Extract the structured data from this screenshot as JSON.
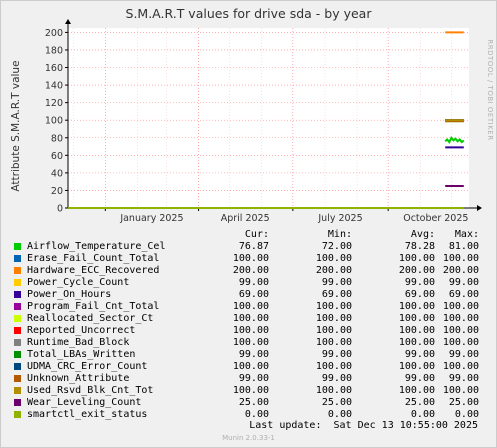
{
  "title": "S.M.A.R.T values for drive sda - by year",
  "watermark": "RRDTOOL / TOBI OETIKER",
  "footer": "Munin 2.0.33-1",
  "legend_header": {
    "cur": "Cur:",
    "min": "Min:",
    "avg": "Avg:",
    "max": "Max:"
  },
  "last_update": "Last update:  Sat Dec 13 10:55:00 2025",
  "colors": {
    "background": "#f0f0f0",
    "plot_bg": "#ffffff",
    "grid": "#ff8080",
    "axis": "#000000"
  },
  "chart_data": {
    "type": "line",
    "title": "S.M.A.R.T values for drive sda - by year",
    "ylabel": "Attribute S.M.A.R.T value",
    "ylim": [
      0,
      205
    ],
    "yticks": [
      0,
      20,
      40,
      60,
      80,
      100,
      120,
      140,
      160,
      180,
      200
    ],
    "xlim": [
      "2024-11-26",
      "2025-12-18"
    ],
    "xticks": [
      {
        "label": "January 2025",
        "date": "2025-01-01"
      },
      {
        "label": "April 2025",
        "date": "2025-04-01"
      },
      {
        "label": "July 2025",
        "date": "2025-07-01"
      },
      {
        "label": "October 2025",
        "date": "2025-10-01"
      }
    ],
    "grid": true,
    "series": [
      {
        "name": "Airflow_Temperature_Cel",
        "color": "#00cc00",
        "cur": "76.87",
        "min": "72.00",
        "avg": "78.28",
        "max": "81.00",
        "x": [
          "2025-11-25",
          "2025-11-27",
          "2025-11-29",
          "2025-12-01",
          "2025-12-03",
          "2025-12-05",
          "2025-12-07",
          "2025-12-09",
          "2025-12-11",
          "2025-12-13"
        ],
        "y": [
          76,
          78,
          75,
          80,
          77,
          79,
          76,
          78,
          75,
          77
        ]
      },
      {
        "name": "Erase_Fail_Count_Total",
        "color": "#0066b3",
        "cur": "100.00",
        "min": "100.00",
        "avg": "100.00",
        "max": "100.00",
        "x": [
          "2025-11-25",
          "2025-12-13"
        ],
        "y": [
          100,
          100
        ]
      },
      {
        "name": "Hardware_ECC_Recovered",
        "color": "#ff8000",
        "cur": "200.00",
        "min": "200.00",
        "avg": "200.00",
        "max": "200.00",
        "x": [
          "2025-11-25",
          "2025-12-13"
        ],
        "y": [
          200,
          200
        ]
      },
      {
        "name": "Power_Cycle_Count",
        "color": "#ffcc00",
        "cur": "99.00",
        "min": "99.00",
        "avg": "99.00",
        "max": "99.00",
        "x": [
          "2025-11-25",
          "2025-12-13"
        ],
        "y": [
          99,
          99
        ]
      },
      {
        "name": "Power_On_Hours",
        "color": "#330099",
        "cur": "69.00",
        "min": "69.00",
        "avg": "69.00",
        "max": "69.00",
        "x": [
          "2025-11-25",
          "2025-12-13"
        ],
        "y": [
          69,
          69
        ]
      },
      {
        "name": "Program_Fail_Cnt_Total",
        "color": "#990099",
        "cur": "100.00",
        "min": "100.00",
        "avg": "100.00",
        "max": "100.00",
        "x": [
          "2025-11-25",
          "2025-12-13"
        ],
        "y": [
          100,
          100
        ]
      },
      {
        "name": "Reallocated_Sector_Ct",
        "color": "#ccff00",
        "cur": "100.00",
        "min": "100.00",
        "avg": "100.00",
        "max": "100.00",
        "x": [
          "2025-11-25",
          "2025-12-13"
        ],
        "y": [
          100,
          100
        ]
      },
      {
        "name": "Reported_Uncorrect",
        "color": "#ff0000",
        "cur": "100.00",
        "min": "100.00",
        "avg": "100.00",
        "max": "100.00",
        "x": [
          "2025-11-25",
          "2025-12-13"
        ],
        "y": [
          100,
          100
        ]
      },
      {
        "name": "Runtime_Bad_Block",
        "color": "#808080",
        "cur": "100.00",
        "min": "100.00",
        "avg": "100.00",
        "max": "100.00",
        "x": [
          "2025-11-25",
          "2025-12-13"
        ],
        "y": [
          100,
          100
        ]
      },
      {
        "name": "Total_LBAs_Written",
        "color": "#008f00",
        "cur": "99.00",
        "min": "99.00",
        "avg": "99.00",
        "max": "99.00",
        "x": [
          "2025-11-25",
          "2025-12-13"
        ],
        "y": [
          99,
          99
        ]
      },
      {
        "name": "UDMA_CRC_Error_Count",
        "color": "#00487d",
        "cur": "100.00",
        "min": "100.00",
        "avg": "100.00",
        "max": "100.00",
        "x": [
          "2025-11-25",
          "2025-12-13"
        ],
        "y": [
          100,
          100
        ]
      },
      {
        "name": "Unknown_Attribute",
        "color": "#b35a00",
        "cur": "99.00",
        "min": "99.00",
        "avg": "99.00",
        "max": "99.00",
        "x": [
          "2025-11-25",
          "2025-12-13"
        ],
        "y": [
          99,
          99
        ]
      },
      {
        "name": "Used_Rsvd_Blk_Cnt_Tot",
        "color": "#b38f00",
        "cur": "100.00",
        "min": "100.00",
        "avg": "100.00",
        "max": "100.00",
        "x": [
          "2025-11-25",
          "2025-12-13"
        ],
        "y": [
          100,
          100
        ]
      },
      {
        "name": "Wear_Leveling_Count",
        "color": "#6b006b",
        "cur": "25.00",
        "min": "25.00",
        "avg": "25.00",
        "max": "25.00",
        "x": [
          "2025-11-25",
          "2025-12-13"
        ],
        "y": [
          25,
          25
        ]
      },
      {
        "name": "smartctl_exit_status",
        "color": "#8fb300",
        "cur": "0.00",
        "min": "0.00",
        "avg": "0.00",
        "max": "0.00",
        "x": [
          "2024-11-26",
          "2025-12-13"
        ],
        "y": [
          0,
          0
        ]
      }
    ]
  }
}
